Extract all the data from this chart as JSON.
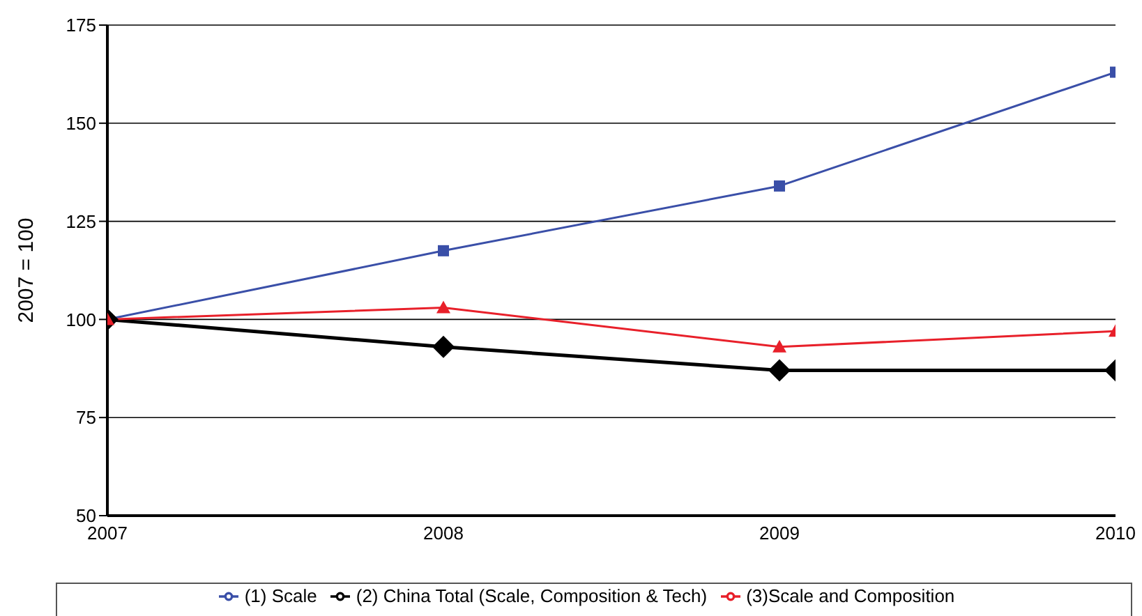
{
  "chart_data": {
    "type": "line",
    "ylabel": "2007 = 100",
    "x": [
      2007,
      2008,
      2009,
      2010
    ],
    "xlim": [
      2007,
      2010
    ],
    "xticks": [
      2007,
      2008,
      2009,
      2010
    ],
    "ylim": [
      50,
      175
    ],
    "yticks": [
      50,
      75,
      100,
      125,
      150,
      175
    ],
    "grid": "y",
    "legend": "bottom",
    "series": [
      {
        "name": "(1) Scale",
        "color": "#3a4fa8",
        "marker": "square",
        "values": [
          100,
          117.5,
          134,
          163
        ]
      },
      {
        "name": "(2) China Total (Scale, Composition & Tech)",
        "color": "#000000",
        "marker": "diamond",
        "values": [
          100,
          93,
          87,
          87
        ]
      },
      {
        "name": "(3)Scale and Composition",
        "color": "#e8202a",
        "marker": "triangle",
        "values": [
          100,
          103,
          93,
          97
        ]
      }
    ]
  }
}
